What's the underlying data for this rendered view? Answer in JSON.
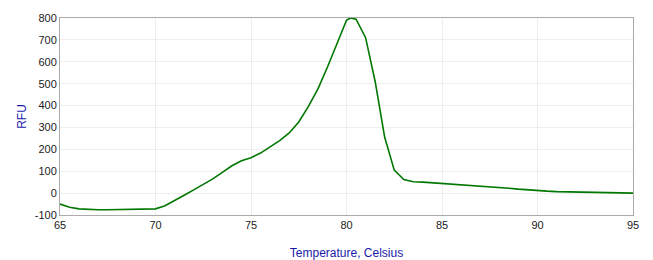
{
  "chart_data": {
    "type": "line",
    "xlabel": "Temperature, Celsius",
    "ylabel": "RFU",
    "x": [
      65.0,
      65.5,
      66.0,
      66.5,
      67.0,
      67.5,
      68.0,
      68.5,
      69.0,
      69.5,
      70.0,
      70.5,
      71.0,
      71.5,
      72.0,
      72.5,
      73.0,
      73.5,
      74.0,
      74.5,
      75.0,
      75.5,
      76.0,
      76.5,
      77.0,
      77.5,
      78.0,
      78.5,
      79.0,
      79.5,
      80.0,
      80.2,
      80.5,
      81.0,
      81.5,
      82.0,
      82.5,
      83.0,
      83.5,
      84.0,
      84.5,
      85.0,
      85.5,
      86.0,
      86.5,
      87.0,
      87.5,
      88.0,
      88.5,
      89.0,
      89.5,
      90.0,
      90.5,
      91.0,
      91.5,
      92.0,
      92.5,
      93.0,
      93.5,
      94.0,
      94.5,
      95.0
    ],
    "values": [
      -50,
      -65,
      -72,
      -75,
      -76,
      -76,
      -75,
      -74,
      -73,
      -73,
      -72,
      -58,
      -35,
      -10,
      15,
      40,
      65,
      95,
      125,
      148,
      162,
      183,
      210,
      240,
      275,
      325,
      395,
      475,
      575,
      685,
      790,
      800,
      795,
      710,
      510,
      255,
      105,
      62,
      52,
      50,
      47,
      44,
      42,
      40,
      37,
      34,
      30,
      26,
      22,
      18,
      14,
      11,
      9,
      7,
      6,
      5,
      4,
      3,
      2,
      2,
      1,
      0
    ],
    "color": "#007700",
    "xlim": [
      65,
      95
    ],
    "ylim": [
      -100,
      800
    ],
    "xticks": [
      65,
      70,
      75,
      80,
      85,
      90,
      95
    ],
    "yticks": [
      -100,
      0,
      100,
      200,
      300,
      400,
      500,
      600,
      700,
      800
    ],
    "grid": true
  }
}
